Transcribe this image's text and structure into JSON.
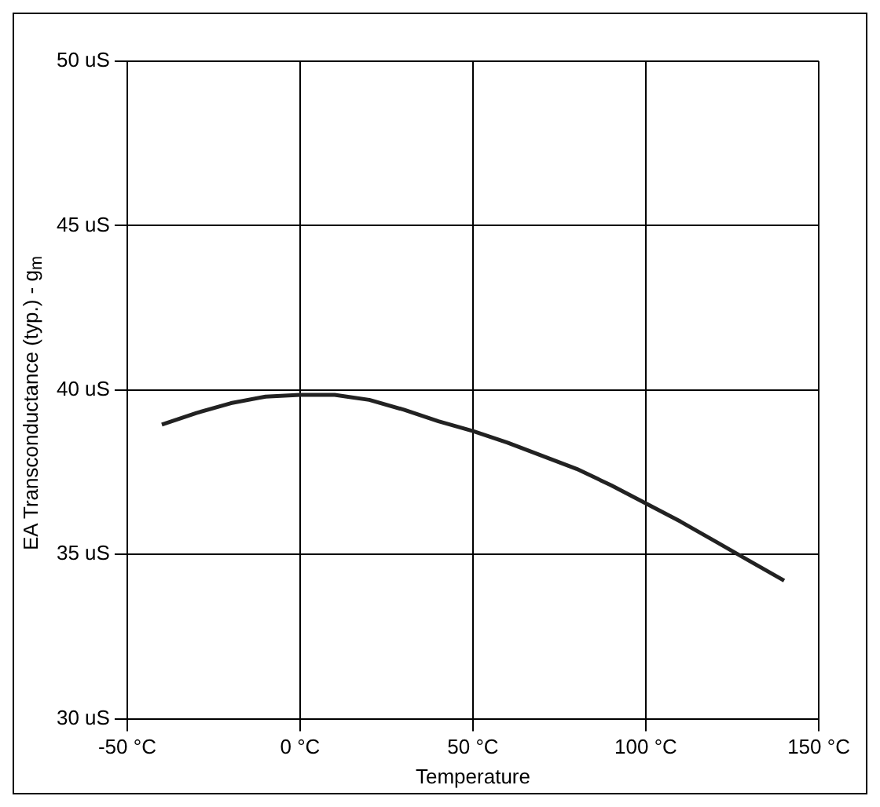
{
  "chart_data": {
    "type": "line",
    "xlabel": "Temperature",
    "ylabel": "EA Transconductance (typ.) - g$_{m}$",
    "series": [
      {
        "color": "#222222",
        "x": [
          -40,
          -30,
          -20,
          -10,
          0,
          10,
          20,
          30,
          40,
          50,
          60,
          70,
          80,
          90,
          100,
          110,
          120,
          130,
          140
        ],
        "values": [
          38.95,
          39.3,
          39.6,
          39.8,
          39.85,
          39.85,
          39.7,
          39.4,
          39.05,
          38.75,
          38.4,
          38.0,
          37.6,
          37.1,
          36.55,
          36.0,
          35.4,
          34.8,
          34.2
        ]
      }
    ],
    "xlim": [
      -50,
      150
    ],
    "xticks": [
      {
        "value": -50,
        "label": "-50 °C"
      },
      {
        "value": 0,
        "label": "0 °C"
      },
      {
        "value": 50,
        "label": "50 °C"
      },
      {
        "value": 100,
        "label": "100 °C"
      },
      {
        "value": 150,
        "label": "150 °C"
      }
    ],
    "ylim": [
      30,
      50
    ],
    "yticks": [
      {
        "value": 30,
        "label": "30 uS"
      },
      {
        "value": 35,
        "label": "35 uS"
      },
      {
        "value": 40,
        "label": "40 uS"
      },
      {
        "value": 45,
        "label": "45 uS"
      },
      {
        "value": 50,
        "label": "50 uS"
      }
    ],
    "grid": true,
    "legend": false,
    "marker": "none",
    "line_style": "solid"
  }
}
